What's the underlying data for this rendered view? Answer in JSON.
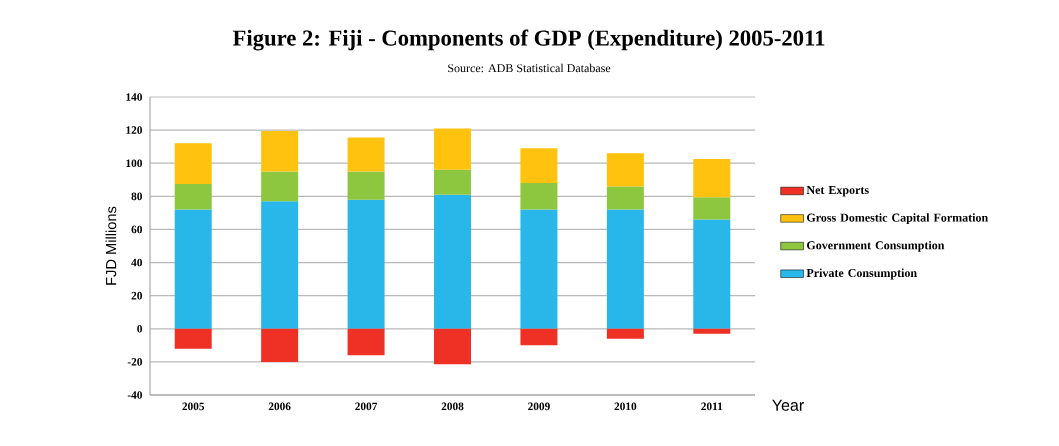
{
  "chart_data": {
    "type": "bar",
    "title": "Figure 2: Fiji - Components of GDP (Expenditure) 2005-2011",
    "subtitle": "Source: ADB Statistical Database",
    "xlabel": "Year",
    "ylabel": "FJD Millions",
    "categories": [
      "2005",
      "2006",
      "2007",
      "2008",
      "2009",
      "2010",
      "2011"
    ],
    "stacked": true,
    "series": [
      {
        "name": "Private Consumption",
        "color": "#29b6e8",
        "values": [
          72,
          77,
          78,
          81,
          72,
          72,
          66
        ]
      },
      {
        "name": "Government Consumption",
        "color": "#8dc63f",
        "values": [
          15.5,
          18,
          17,
          15,
          16,
          14,
          13.5
        ]
      },
      {
        "name": "Gross Domestic Capital Formation",
        "color": "#ffc20e",
        "values": [
          24.5,
          24.5,
          20.5,
          25,
          21,
          20,
          23
        ]
      },
      {
        "name": "Net Exports",
        "color": "#ee3124",
        "values": [
          -12,
          -20,
          -16,
          -21.5,
          -10,
          -6,
          -3
        ]
      }
    ],
    "ylim": [
      -40,
      140
    ],
    "yticks": [
      -40,
      -20,
      0,
      20,
      40,
      60,
      80,
      100,
      120,
      140
    ],
    "grid": "y",
    "legend": "right"
  }
}
